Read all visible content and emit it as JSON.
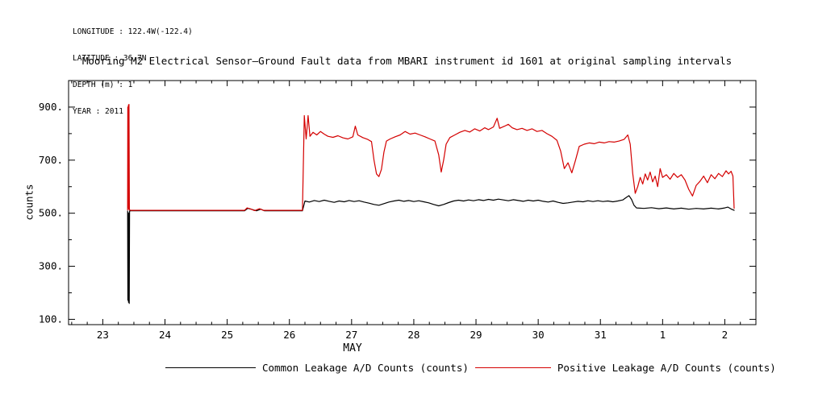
{
  "header_info": {
    "longitude": "LONGITUDE : 122.4W(-122.4)",
    "latitude": "LATITUDE : 36.7N",
    "depth": "DEPTH (m) : 1",
    "year": "YEAR : 2011"
  },
  "chart_data": {
    "type": "line",
    "title": "Mooring M2 Electrical Sensor—Ground Fault data from MBARI instrument id 1601 at original sampling intervals",
    "xlabel": "MAY",
    "ylabel": "counts",
    "xlim": [
      22.45,
      33.5
    ],
    "ylim": [
      80,
      1000
    ],
    "grid": false,
    "legend_position": "bottom",
    "axis_color": "#000000",
    "x_ticks": [
      {
        "v": 23,
        "label": "23"
      },
      {
        "v": 24,
        "label": "24"
      },
      {
        "v": 25,
        "label": "25"
      },
      {
        "v": 26,
        "label": "26"
      },
      {
        "v": 27,
        "label": "27"
      },
      {
        "v": 28,
        "label": "28"
      },
      {
        "v": 29,
        "label": "29"
      },
      {
        "v": 30,
        "label": "30"
      },
      {
        "v": 31,
        "label": "31"
      },
      {
        "v": 32,
        "label": "1"
      },
      {
        "v": 33,
        "label": "2"
      }
    ],
    "y_ticks": [
      {
        "v": 100,
        "label": "100."
      },
      {
        "v": 300,
        "label": "300."
      },
      {
        "v": 500,
        "label": "500."
      },
      {
        "v": 700,
        "label": "700."
      },
      {
        "v": 900,
        "label": "900."
      }
    ],
    "x_minor_step": 0.25,
    "y_minor_step": 100,
    "series": [
      {
        "name": "Common Leakage A/D Counts (counts)",
        "color": "#000000",
        "points": [
          [
            23.4,
            508
          ],
          [
            23.403,
            172
          ],
          [
            23.409,
            502
          ],
          [
            23.414,
            164
          ],
          [
            23.42,
            500
          ],
          [
            23.425,
            160
          ],
          [
            23.43,
            508
          ],
          [
            23.45,
            509
          ],
          [
            24.5,
            509
          ],
          [
            25.28,
            509
          ],
          [
            25.33,
            518
          ],
          [
            25.4,
            514
          ],
          [
            25.47,
            509
          ],
          [
            25.54,
            515
          ],
          [
            25.6,
            509
          ],
          [
            26.21,
            509
          ],
          [
            26.25,
            546
          ],
          [
            26.32,
            542
          ],
          [
            26.4,
            548
          ],
          [
            26.48,
            544
          ],
          [
            26.56,
            549
          ],
          [
            26.64,
            545
          ],
          [
            26.72,
            541
          ],
          [
            26.8,
            546
          ],
          [
            26.88,
            543
          ],
          [
            26.96,
            548
          ],
          [
            27.04,
            544
          ],
          [
            27.12,
            547
          ],
          [
            27.2,
            542
          ],
          [
            27.28,
            538
          ],
          [
            27.36,
            533
          ],
          [
            27.44,
            530
          ],
          [
            27.52,
            536
          ],
          [
            27.6,
            542
          ],
          [
            27.68,
            546
          ],
          [
            27.76,
            549
          ],
          [
            27.84,
            545
          ],
          [
            27.92,
            548
          ],
          [
            28.0,
            544
          ],
          [
            28.08,
            547
          ],
          [
            28.16,
            543
          ],
          [
            28.24,
            539
          ],
          [
            28.32,
            533
          ],
          [
            28.4,
            528
          ],
          [
            28.48,
            533
          ],
          [
            28.56,
            540
          ],
          [
            28.64,
            546
          ],
          [
            28.72,
            549
          ],
          [
            28.8,
            546
          ],
          [
            28.88,
            550
          ],
          [
            28.96,
            547
          ],
          [
            29.04,
            551
          ],
          [
            29.12,
            548
          ],
          [
            29.2,
            552
          ],
          [
            29.28,
            549
          ],
          [
            29.36,
            553
          ],
          [
            29.44,
            550
          ],
          [
            29.52,
            547
          ],
          [
            29.6,
            551
          ],
          [
            29.68,
            548
          ],
          [
            29.76,
            545
          ],
          [
            29.84,
            549
          ],
          [
            29.92,
            546
          ],
          [
            30.0,
            549
          ],
          [
            30.08,
            545
          ],
          [
            30.16,
            542
          ],
          [
            30.24,
            546
          ],
          [
            30.32,
            541
          ],
          [
            30.4,
            537
          ],
          [
            30.48,
            539
          ],
          [
            30.56,
            542
          ],
          [
            30.64,
            545
          ],
          [
            30.72,
            543
          ],
          [
            30.8,
            547
          ],
          [
            30.88,
            544
          ],
          [
            30.96,
            547
          ],
          [
            31.04,
            544
          ],
          [
            31.12,
            546
          ],
          [
            31.2,
            543
          ],
          [
            31.28,
            546
          ],
          [
            31.36,
            550
          ],
          [
            31.42,
            560
          ],
          [
            31.46,
            566
          ],
          [
            31.5,
            552
          ],
          [
            31.54,
            530
          ],
          [
            31.58,
            520
          ],
          [
            31.7,
            518
          ],
          [
            31.82,
            521
          ],
          [
            31.94,
            517
          ],
          [
            32.06,
            520
          ],
          [
            32.18,
            516
          ],
          [
            32.3,
            519
          ],
          [
            32.42,
            515
          ],
          [
            32.54,
            518
          ],
          [
            32.66,
            516
          ],
          [
            32.78,
            519
          ],
          [
            32.9,
            516
          ],
          [
            33.0,
            520
          ],
          [
            33.05,
            523
          ],
          [
            33.1,
            516
          ],
          [
            33.15,
            511
          ]
        ]
      },
      {
        "name": "Positive Leakage A/D Counts (counts)",
        "color": "#d40000",
        "points": [
          [
            23.4,
            512
          ],
          [
            23.402,
            900
          ],
          [
            23.408,
            520
          ],
          [
            23.412,
            908
          ],
          [
            23.418,
            515
          ],
          [
            23.422,
            910
          ],
          [
            23.428,
            512
          ],
          [
            23.45,
            511
          ],
          [
            24.0,
            511
          ],
          [
            25.0,
            511
          ],
          [
            25.28,
            511
          ],
          [
            25.32,
            520
          ],
          [
            25.38,
            516
          ],
          [
            25.44,
            510
          ],
          [
            25.52,
            517
          ],
          [
            25.58,
            511
          ],
          [
            26.0,
            511
          ],
          [
            26.21,
            511
          ],
          [
            26.24,
            868
          ],
          [
            26.27,
            780
          ],
          [
            26.3,
            868
          ],
          [
            26.33,
            790
          ],
          [
            26.38,
            805
          ],
          [
            26.44,
            795
          ],
          [
            26.5,
            808
          ],
          [
            26.56,
            798
          ],
          [
            26.62,
            790
          ],
          [
            26.7,
            786
          ],
          [
            26.78,
            792
          ],
          [
            26.86,
            784
          ],
          [
            26.94,
            780
          ],
          [
            27.02,
            788
          ],
          [
            27.06,
            828
          ],
          [
            27.1,
            795
          ],
          [
            27.18,
            785
          ],
          [
            27.26,
            778
          ],
          [
            27.32,
            770
          ],
          [
            27.36,
            700
          ],
          [
            27.4,
            648
          ],
          [
            27.44,
            638
          ],
          [
            27.48,
            665
          ],
          [
            27.52,
            730
          ],
          [
            27.56,
            772
          ],
          [
            27.62,
            780
          ],
          [
            27.7,
            788
          ],
          [
            27.78,
            795
          ],
          [
            27.86,
            808
          ],
          [
            27.94,
            798
          ],
          [
            28.02,
            802
          ],
          [
            28.1,
            795
          ],
          [
            28.18,
            788
          ],
          [
            28.26,
            780
          ],
          [
            28.34,
            772
          ],
          [
            28.4,
            720
          ],
          [
            28.44,
            655
          ],
          [
            28.48,
            700
          ],
          [
            28.52,
            760
          ],
          [
            28.58,
            785
          ],
          [
            28.66,
            795
          ],
          [
            28.74,
            805
          ],
          [
            28.82,
            812
          ],
          [
            28.9,
            806
          ],
          [
            28.98,
            818
          ],
          [
            29.06,
            810
          ],
          [
            29.14,
            822
          ],
          [
            29.2,
            815
          ],
          [
            29.28,
            825
          ],
          [
            29.34,
            858
          ],
          [
            29.38,
            820
          ],
          [
            29.46,
            828
          ],
          [
            29.52,
            835
          ],
          [
            29.58,
            822
          ],
          [
            29.66,
            815
          ],
          [
            29.74,
            820
          ],
          [
            29.82,
            812
          ],
          [
            29.9,
            818
          ],
          [
            29.98,
            808
          ],
          [
            30.06,
            812
          ],
          [
            30.14,
            800
          ],
          [
            30.22,
            790
          ],
          [
            30.3,
            775
          ],
          [
            30.36,
            735
          ],
          [
            30.42,
            668
          ],
          [
            30.48,
            690
          ],
          [
            30.54,
            652
          ],
          [
            30.6,
            700
          ],
          [
            30.66,
            752
          ],
          [
            30.74,
            760
          ],
          [
            30.82,
            765
          ],
          [
            30.9,
            762
          ],
          [
            30.98,
            768
          ],
          [
            31.06,
            765
          ],
          [
            31.14,
            770
          ],
          [
            31.22,
            768
          ],
          [
            31.3,
            772
          ],
          [
            31.38,
            778
          ],
          [
            31.44,
            795
          ],
          [
            31.48,
            760
          ],
          [
            31.52,
            650
          ],
          [
            31.56,
            575
          ],
          [
            31.6,
            600
          ],
          [
            31.64,
            635
          ],
          [
            31.68,
            610
          ],
          [
            31.72,
            648
          ],
          [
            31.76,
            625
          ],
          [
            31.8,
            655
          ],
          [
            31.84,
            618
          ],
          [
            31.88,
            640
          ],
          [
            31.92,
            600
          ],
          [
            31.96,
            668
          ],
          [
            32.0,
            635
          ],
          [
            32.06,
            645
          ],
          [
            32.12,
            628
          ],
          [
            32.18,
            650
          ],
          [
            32.24,
            635
          ],
          [
            32.3,
            645
          ],
          [
            32.36,
            625
          ],
          [
            32.42,
            590
          ],
          [
            32.48,
            565
          ],
          [
            32.54,
            605
          ],
          [
            32.6,
            620
          ],
          [
            32.66,
            640
          ],
          [
            32.72,
            615
          ],
          [
            32.78,
            645
          ],
          [
            32.84,
            630
          ],
          [
            32.9,
            650
          ],
          [
            32.96,
            638
          ],
          [
            33.02,
            660
          ],
          [
            33.06,
            648
          ],
          [
            33.1,
            658
          ],
          [
            33.13,
            640
          ],
          [
            33.15,
            518
          ]
        ]
      }
    ]
  }
}
